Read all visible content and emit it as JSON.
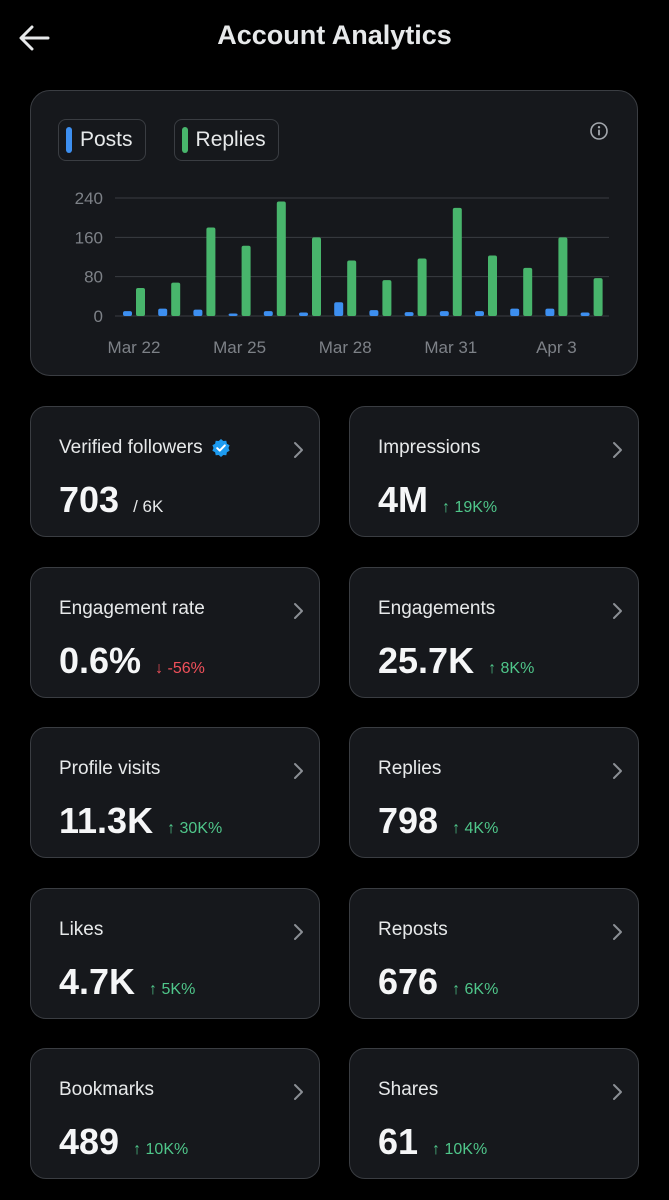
{
  "header": {
    "title": "Account Analytics"
  },
  "legend": {
    "posts": "Posts",
    "replies": "Replies"
  },
  "colors": {
    "posts": "#3d8ff0",
    "replies": "#48b56c",
    "up": "#4fc68a",
    "down": "#f0505a",
    "verified": "#1d9bf0"
  },
  "chart_data": {
    "type": "bar",
    "categories": [
      "Mar 22",
      "Mar 23",
      "Mar 24",
      "Mar 25",
      "Mar 26",
      "Mar 27",
      "Mar 28",
      "Mar 29",
      "Mar 30",
      "Mar 31",
      "Apr 1",
      "Apr 2",
      "Apr 3",
      "Apr 4"
    ],
    "xtick_labels": [
      "Mar 22",
      "Mar 25",
      "Mar 28",
      "Mar 31",
      "Apr 3"
    ],
    "xtick_indices": [
      0,
      3,
      6,
      9,
      12
    ],
    "series": [
      {
        "name": "Posts",
        "values": [
          10,
          15,
          13,
          5,
          10,
          7,
          28,
          12,
          8,
          10,
          10,
          15,
          15,
          7
        ]
      },
      {
        "name": "Replies",
        "values": [
          57,
          68,
          180,
          143,
          233,
          160,
          113,
          73,
          117,
          220,
          123,
          98,
          160,
          77
        ]
      }
    ],
    "yticks": [
      0,
      80,
      160,
      240
    ],
    "ylim": [
      0,
      260
    ],
    "grid": true
  },
  "metrics": [
    {
      "label": "Verified followers",
      "value": "703",
      "sub": "/ 6K",
      "change": "",
      "dir": "none",
      "verified": true
    },
    {
      "label": "Impressions",
      "value": "4M",
      "change": "↑ 19K%",
      "dir": "up"
    },
    {
      "label": "Engagement rate",
      "value": "0.6%",
      "change": "↓ -56%",
      "dir": "down"
    },
    {
      "label": "Engagements",
      "value": "25.7K",
      "change": "↑ 8K%",
      "dir": "up"
    },
    {
      "label": "Profile visits",
      "value": "11.3K",
      "change": "↑ 30K%",
      "dir": "up"
    },
    {
      "label": "Replies",
      "value": "798",
      "change": "↑ 4K%",
      "dir": "up"
    },
    {
      "label": "Likes",
      "value": "4.7K",
      "change": "↑ 5K%",
      "dir": "up"
    },
    {
      "label": "Reposts",
      "value": "676",
      "change": "↑ 6K%",
      "dir": "up"
    },
    {
      "label": "Bookmarks",
      "value": "489",
      "change": "↑ 10K%",
      "dir": "up"
    },
    {
      "label": "Shares",
      "value": "61",
      "change": "↑ 10K%",
      "dir": "up"
    }
  ]
}
